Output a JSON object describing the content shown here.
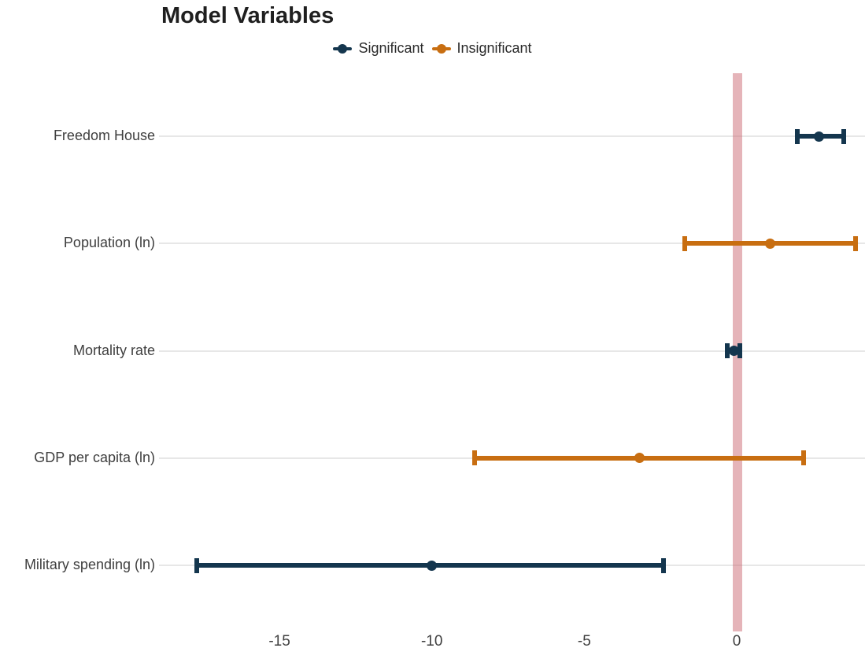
{
  "title": "Model Variables",
  "colors": {
    "significant": "#14364E",
    "insignificant": "#C86E11",
    "zero_band": "rgba(203,106,115,0.5)",
    "gridline": "#E7E7E7",
    "axis_text": "#3f3f3f",
    "title_text": "#1f1f1f"
  },
  "legend": {
    "items": [
      {
        "label": "Significant",
        "color_key": "significant"
      },
      {
        "label": "Insignificant",
        "color_key": "insignificant"
      }
    ]
  },
  "chart_data": {
    "type": "pointrange",
    "orientation": "horizontal",
    "title": "Model Variables",
    "xlabel": "",
    "ylabel": "",
    "x_ticks": [
      "-15",
      "-10",
      "-5",
      "0"
    ],
    "x_tick_values": [
      -15,
      -10,
      -5,
      0
    ],
    "xlim": [
      -18.9,
      4.2
    ],
    "grid": "horizontal-major-only",
    "legend_position": "top-center",
    "zero_reference_band": {
      "at": 0,
      "shown": true
    },
    "series": [
      {
        "label": "Freedom House",
        "group": "Significant",
        "estimate": 2.7,
        "low": 2.0,
        "high": 3.5
      },
      {
        "label": "Population (ln)",
        "group": "Insignificant",
        "estimate": 1.1,
        "low": -1.7,
        "high": 3.9
      },
      {
        "label": "Mortality rate",
        "group": "Significant",
        "estimate": -0.1,
        "low": -0.3,
        "high": 0.1
      },
      {
        "label": "GDP per capita (ln)",
        "group": "Insignificant",
        "estimate": -3.2,
        "low": -8.6,
        "high": 2.2
      },
      {
        "label": "Military spending (ln)",
        "group": "Significant",
        "estimate": -10.0,
        "low": -17.7,
        "high": -2.4
      }
    ]
  }
}
